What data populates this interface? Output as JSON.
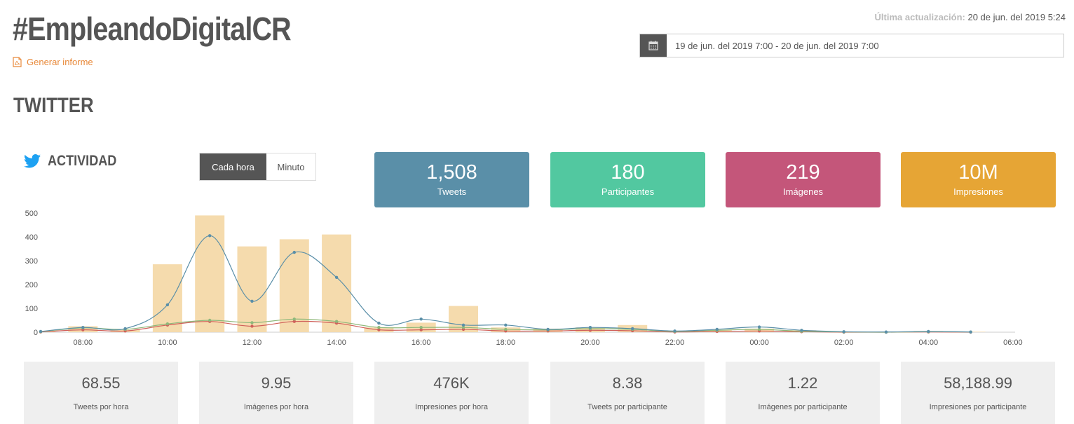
{
  "header": {
    "title": "#EmpleandoDigitalCR",
    "report_link": "Generar informe",
    "last_update_label": "Última actualización:",
    "last_update_value": "20 de jun. del 2019 5:24",
    "date_range": "19 de jun. del 2019 7:00 - 20 de jun. del 2019 7:00"
  },
  "section": {
    "title": "TWITTER"
  },
  "activity": {
    "label": "ACTIVIDAD",
    "toggle": {
      "hourly": "Cada hora",
      "minute": "Minuto",
      "active": "hourly"
    }
  },
  "stats": [
    {
      "value": "1,508",
      "label": "Tweets",
      "color": "#5a8fa8"
    },
    {
      "value": "180",
      "label": "Participantes",
      "color": "#52c8a0"
    },
    {
      "value": "219",
      "label": "Imágenes",
      "color": "#c4567a"
    },
    {
      "value": "10M",
      "label": "Impresiones",
      "color": "#e6a535"
    }
  ],
  "chart_data": {
    "type": "bar",
    "x": [
      "07:00",
      "08:00",
      "09:00",
      "10:00",
      "11:00",
      "12:00",
      "13:00",
      "14:00",
      "15:00",
      "16:00",
      "17:00",
      "18:00",
      "19:00",
      "20:00",
      "21:00",
      "22:00",
      "23:00",
      "00:00",
      "01:00",
      "02:00",
      "03:00",
      "04:00",
      "05:00"
    ],
    "tick_labels": [
      "08:00",
      "10:00",
      "12:00",
      "14:00",
      "16:00",
      "18:00",
      "20:00",
      "22:00",
      "00:00",
      "02:00",
      "04:00",
      "06:00"
    ],
    "ylim": [
      0,
      500
    ],
    "yticks": [
      0,
      100,
      200,
      300,
      400,
      500
    ],
    "bars": [
      5,
      25,
      10,
      285,
      490,
      360,
      390,
      410,
      20,
      40,
      110,
      20,
      15,
      20,
      30,
      5,
      10,
      15,
      8,
      2,
      1,
      5,
      2
    ],
    "series": [
      {
        "color": "#5a8fa8",
        "values": [
          3,
          20,
          15,
          115,
          405,
          130,
          335,
          230,
          38,
          55,
          30,
          30,
          12,
          20,
          15,
          5,
          12,
          22,
          8,
          2,
          1,
          3,
          1
        ]
      },
      {
        "color": "#8fb87a",
        "values": [
          2,
          18,
          12,
          35,
          50,
          40,
          55,
          45,
          20,
          20,
          20,
          12,
          10,
          15,
          12,
          3,
          8,
          12,
          4,
          1,
          0,
          2,
          1
        ]
      },
      {
        "color": "#d0605a",
        "values": [
          1,
          10,
          5,
          30,
          45,
          25,
          45,
          38,
          10,
          10,
          12,
          5,
          5,
          8,
          6,
          1,
          3,
          5,
          2,
          0,
          0,
          1,
          0
        ]
      }
    ],
    "bar_color": "#f5dbad",
    "grid": false
  },
  "metrics": [
    {
      "value": "68.55",
      "label": "Tweets por hora"
    },
    {
      "value": "9.95",
      "label": "Imágenes por hora"
    },
    {
      "value": "476K",
      "label": "Impresiones por hora"
    },
    {
      "value": "8.38",
      "label": "Tweets por participante"
    },
    {
      "value": "1.22",
      "label": "Imágenes por participante"
    },
    {
      "value": "58,188.99",
      "label": "Impresiones por participante"
    }
  ]
}
